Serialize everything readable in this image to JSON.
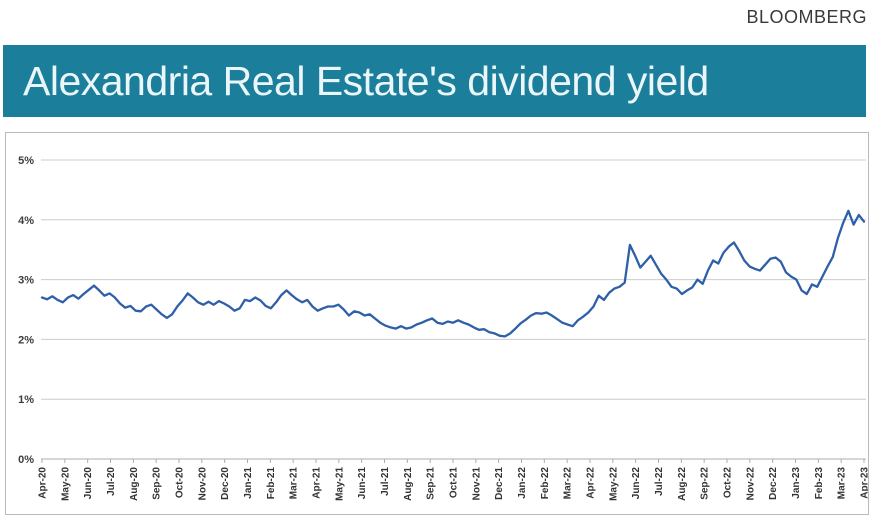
{
  "page": {
    "source_label": "BLOOMBERG"
  },
  "banner": {
    "title": "Alexandria Real Estate's dividend yield",
    "bg_color": "#1b7e9b",
    "text_color": "#eaf6f9"
  },
  "chart_data": {
    "type": "line",
    "title": "Alexandria Real Estate's dividend yield",
    "xlabel": "",
    "ylabel": "",
    "unit": "%",
    "ylim": [
      0,
      5
    ],
    "grid": true,
    "legend": false,
    "y_tick_labels": [
      "0%",
      "1%",
      "2%",
      "3%",
      "4%",
      "5%"
    ],
    "x_tick_labels": [
      "Apr-20",
      "May-20",
      "Jun-20",
      "Jul-20",
      "Aug-20",
      "Sep-20",
      "Oct-20",
      "Nov-20",
      "Dec-20",
      "Jan-21",
      "Feb-21",
      "Mar-21",
      "Apr-21",
      "May-21",
      "Jun-21",
      "Jul-21",
      "Aug-21",
      "Sep-21",
      "Oct-21",
      "Nov-21",
      "Dec-21",
      "Jan-22",
      "Feb-22",
      "Mar-22",
      "Apr-22",
      "May-22",
      "Jun-22",
      "Jul-22",
      "Aug-22",
      "Sep-22",
      "Oct-22",
      "Nov-22",
      "Dec-22",
      "Jan-23",
      "Feb-23",
      "Mar-23",
      "Apr-23"
    ],
    "series": [
      {
        "name": "Dividend yield",
        "color": "#2f5fa8",
        "sampling": "weekly",
        "values": [
          2.7,
          2.67,
          2.72,
          2.66,
          2.62,
          2.7,
          2.74,
          2.68,
          2.76,
          2.83,
          2.9,
          2.82,
          2.73,
          2.77,
          2.7,
          2.6,
          2.53,
          2.56,
          2.48,
          2.47,
          2.55,
          2.58,
          2.5,
          2.42,
          2.36,
          2.42,
          2.55,
          2.65,
          2.77,
          2.7,
          2.62,
          2.58,
          2.63,
          2.58,
          2.64,
          2.6,
          2.55,
          2.48,
          2.52,
          2.66,
          2.64,
          2.7,
          2.65,
          2.56,
          2.52,
          2.62,
          2.74,
          2.82,
          2.74,
          2.67,
          2.62,
          2.66,
          2.55,
          2.48,
          2.52,
          2.55,
          2.55,
          2.58,
          2.5,
          2.4,
          2.47,
          2.45,
          2.4,
          2.42,
          2.35,
          2.28,
          2.23,
          2.2,
          2.18,
          2.22,
          2.18,
          2.2,
          2.25,
          2.28,
          2.32,
          2.35,
          2.28,
          2.26,
          2.3,
          2.28,
          2.32,
          2.28,
          2.25,
          2.2,
          2.16,
          2.17,
          2.12,
          2.1,
          2.06,
          2.05,
          2.1,
          2.18,
          2.27,
          2.33,
          2.4,
          2.44,
          2.43,
          2.45,
          2.4,
          2.34,
          2.28,
          2.25,
          2.22,
          2.32,
          2.38,
          2.45,
          2.55,
          2.73,
          2.66,
          2.78,
          2.85,
          2.88,
          2.95,
          3.58,
          3.4,
          3.2,
          3.3,
          3.4,
          3.25,
          3.1,
          3.0,
          2.88,
          2.85,
          2.76,
          2.82,
          2.87,
          3.0,
          2.93,
          3.15,
          3.32,
          3.27,
          3.45,
          3.55,
          3.62,
          3.48,
          3.32,
          3.22,
          3.18,
          3.15,
          3.25,
          3.35,
          3.37,
          3.3,
          3.12,
          3.05,
          3.0,
          2.82,
          2.76,
          2.92,
          2.88,
          3.05,
          3.22,
          3.38,
          3.7,
          3.95,
          4.15,
          3.92,
          4.08,
          3.97
        ]
      }
    ],
    "colors": {
      "gridline": "#cccccc",
      "axis_line": "#adadad",
      "tick": "#adadad",
      "plot_border": "#b9b9b9"
    }
  }
}
